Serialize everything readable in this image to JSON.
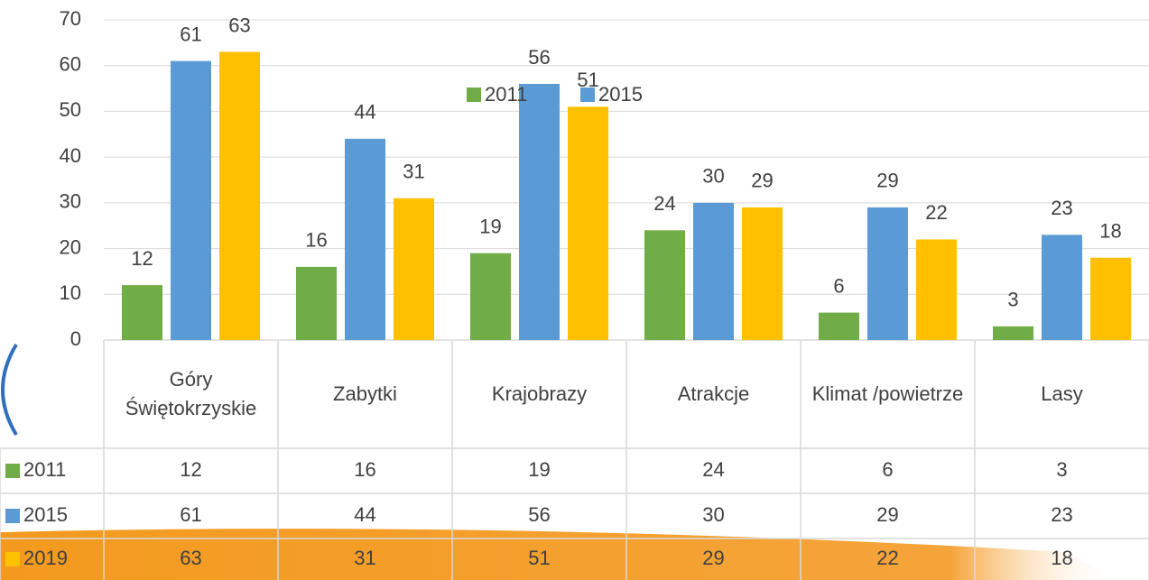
{
  "chart_data": {
    "type": "bar",
    "categories": [
      "Góry Świętokrzyskie",
      "Zabytki",
      "Krajobrazy",
      "Atrakcje",
      "Klimat /powietrze",
      "Lasy"
    ],
    "series": [
      {
        "name": "2011",
        "color": "#70ad47",
        "values": [
          12,
          16,
          19,
          24,
          6,
          3
        ]
      },
      {
        "name": "2015",
        "color": "#5b9bd5",
        "values": [
          61,
          44,
          56,
          30,
          29,
          23
        ]
      },
      {
        "name": "2019",
        "color": "#ffc000",
        "values": [
          63,
          31,
          51,
          29,
          22,
          18
        ]
      }
    ],
    "ylim": [
      0,
      70
    ],
    "yticks": [
      0,
      10,
      20,
      30,
      40,
      50,
      60,
      70
    ],
    "grid": true
  }
}
